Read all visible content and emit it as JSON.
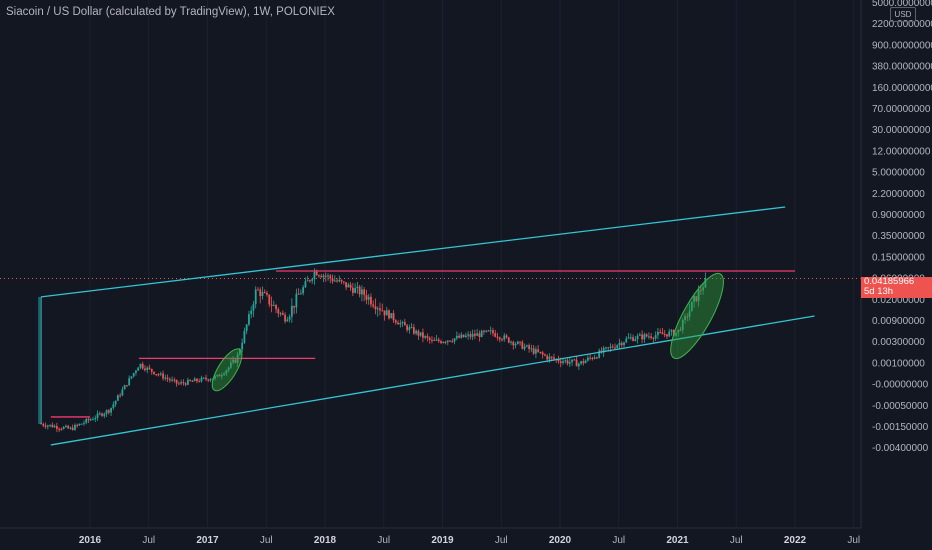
{
  "header": {
    "title": "Siacoin / US Dollar (calculated by TradingView), 1W, POLONIEX",
    "currency": "USD"
  },
  "price_tag": {
    "price": "0.04185966",
    "countdown": "5d 13h"
  },
  "colors": {
    "background": "#131722",
    "up": "#26a69a",
    "down": "#ef5350",
    "channel": "#33c5d4",
    "resistance": "#f23a6e",
    "ellipse": "#2e9d3a",
    "axis_text": "#b2b5be"
  },
  "chart_data": {
    "type": "candlestick",
    "title": "Siacoin / US Dollar (calculated by TradingView), 1W, POLONIEX",
    "y_scale": "log",
    "y_ticks": [
      "5000.00000000",
      "2200.00000000",
      "900.00000000",
      "380.00000000",
      "160.00000000",
      "70.00000000",
      "30.00000000",
      "12.00000000",
      "5.00000000",
      "2.20000000",
      "0.90000000",
      "0.35000000",
      "0.15000000",
      "0.06000000",
      "0.02000000",
      "0.00900000",
      "0.00300000",
      "0.00100000",
      "-0.00000000",
      "-0.00050000",
      "-0.00150000",
      "-0.00400000"
    ],
    "x_ticks": [
      {
        "label": "2016",
        "year": true
      },
      {
        "label": "Jul",
        "year": false
      },
      {
        "label": "2017",
        "year": true
      },
      {
        "label": "Jul",
        "year": false
      },
      {
        "label": "2018",
        "year": true
      },
      {
        "label": "Jul",
        "year": false
      },
      {
        "label": "2019",
        "year": true
      },
      {
        "label": "Jul",
        "year": false
      },
      {
        "label": "2020",
        "year": true
      },
      {
        "label": "Jul",
        "year": false
      },
      {
        "label": "2021",
        "year": true
      },
      {
        "label": "Jul",
        "year": false
      },
      {
        "label": "2022",
        "year": true
      },
      {
        "label": "Jul",
        "year": false
      }
    ],
    "x_range": [
      "2015-08",
      "2022-07"
    ],
    "price_path": [
      {
        "date": "2015-08",
        "price": 4e-05
      },
      {
        "date": "2015-11",
        "price": 3e-05
      },
      {
        "date": "2016-03",
        "price": 9e-05
      },
      {
        "date": "2016-06",
        "price": 0.0012
      },
      {
        "date": "2016-10",
        "price": 0.0004
      },
      {
        "date": "2017-02",
        "price": 0.0006
      },
      {
        "date": "2017-04",
        "price": 0.0015
      },
      {
        "date": "2017-06",
        "price": 0.025
      },
      {
        "date": "2017-09",
        "price": 0.008
      },
      {
        "date": "2017-12",
        "price": 0.06
      },
      {
        "date": "2018-05",
        "price": 0.02
      },
      {
        "date": "2018-09",
        "price": 0.006
      },
      {
        "date": "2018-12",
        "price": 0.003
      },
      {
        "date": "2019-06",
        "price": 0.0045
      },
      {
        "date": "2019-12",
        "price": 0.0015
      },
      {
        "date": "2020-03",
        "price": 0.0012
      },
      {
        "date": "2020-08",
        "price": 0.0035
      },
      {
        "date": "2021-01",
        "price": 0.0045
      },
      {
        "date": "2021-04",
        "price": 0.04
      }
    ],
    "last_price": 0.04185966,
    "drawings": {
      "channel_upper": [
        {
          "date": "2015-08",
          "price": 0.018
        },
        {
          "date": "2021-12",
          "price": 0.9
        }
      ],
      "channel_lower": [
        {
          "date": "2015-09",
          "price": 1.2e-05
        },
        {
          "date": "2022-03",
          "price": 0.009
        }
      ],
      "resistance_lines": [
        {
          "from": "2015-09",
          "to": "2016-01",
          "price": 6e-05
        },
        {
          "from": "2016-06",
          "to": "2017-12",
          "price": 0.0015
        },
        {
          "from": "2017-08",
          "to": "2022-01",
          "price": 0.06
        }
      ],
      "ellipses": [
        {
          "center_date": "2017-03",
          "center_price": 0.0009
        },
        {
          "center_date": "2021-03",
          "center_price": 0.009
        }
      ]
    }
  }
}
